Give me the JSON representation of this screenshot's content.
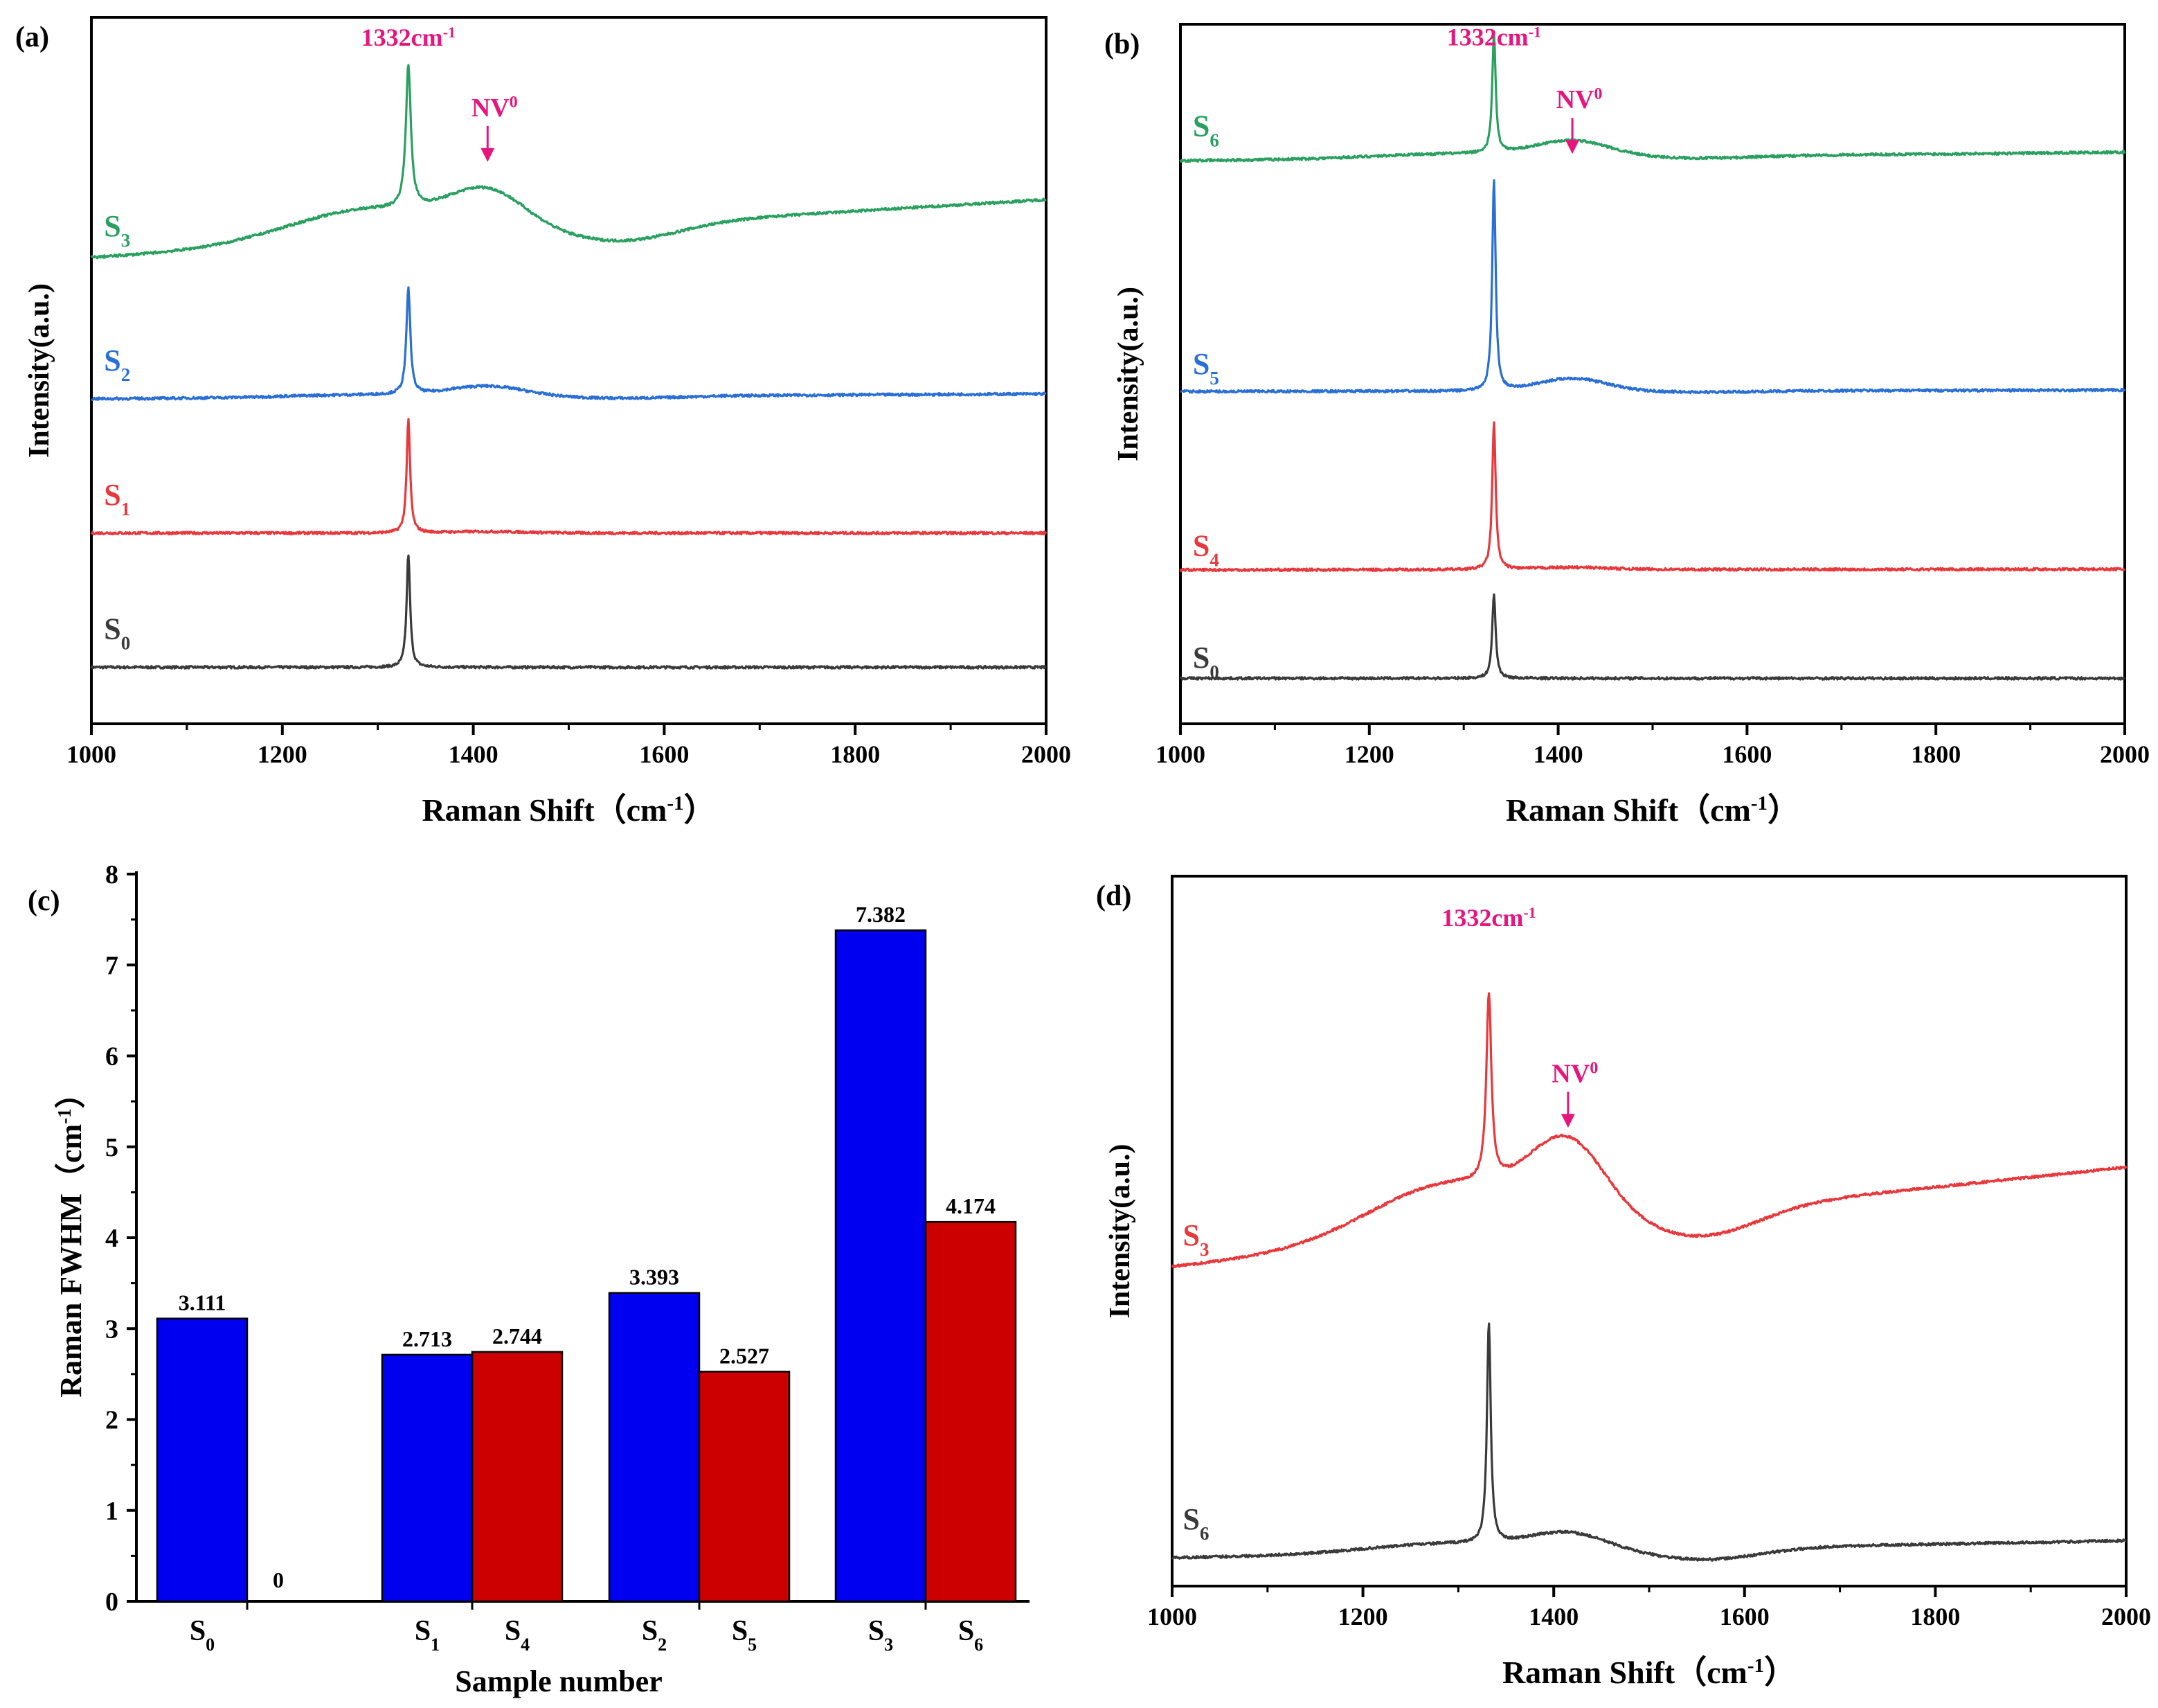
{
  "figure": {
    "colors": {
      "axis": "#000000",
      "s0": "#3a3a3a",
      "red": "#e8383c",
      "blue": "#2a6fd6",
      "green": "#2aa060",
      "annotation": "#e6167e",
      "bar_blue": "#0000f0",
      "bar_red": "#cc0000"
    },
    "annotations": {
      "peak_value": "1332",
      "peak_unit": "cm",
      "peak_sup": "-1",
      "nv_text": "NV",
      "nv_sup": "0"
    }
  },
  "chart_data": [
    {
      "id": "a",
      "panel_label": "(a)",
      "type": "line",
      "xlabel": "Raman Shift（cm",
      "xlabel_sup": "-1",
      "xlabel_end": "）",
      "ylabel": "Intensity(a.u.)",
      "xlim": [
        1000,
        2000
      ],
      "ylim": [
        0,
        100
      ],
      "xticks": [
        1000,
        1200,
        1400,
        1600,
        1800,
        2000
      ],
      "yticks": [],
      "series": [
        {
          "name": "S0",
          "label": "S",
          "sub": "0",
          "color": "#3a3a3a",
          "base": 8,
          "slope": 0,
          "curv": 0,
          "peak": 16,
          "peakw": 2.2,
          "nv": 0,
          "nvw": 60,
          "hump": 0,
          "label_x": 1027,
          "label_y": 12
        },
        {
          "name": "S1",
          "label": "S",
          "sub": "1",
          "color": "#e8383c",
          "base": 27,
          "slope": 0,
          "curv": 0,
          "peak": 16,
          "peakw": 2.2,
          "nv": 0.2,
          "nvw": 60,
          "hump": 0,
          "label_x": 1027,
          "label_y": 31
        },
        {
          "name": "S2",
          "label": "S",
          "sub": "2",
          "color": "#2a6fd6",
          "base": 46,
          "slope": 0.7,
          "curv": 0.7,
          "peak": 15,
          "peakw": 2.5,
          "nv": 1.4,
          "nvw": 55,
          "hump": 0.3,
          "label_x": 1027,
          "label_y": 50
        },
        {
          "name": "S3",
          "label": "S",
          "sub": "3",
          "color": "#2aa060",
          "base": 66,
          "slope": 8.2,
          "curv": 8.2,
          "peak": 20,
          "peakw": 3.2,
          "nv": 5,
          "nvw": 55,
          "hump": 2.2,
          "label_x": 1027,
          "label_y": 69
        }
      ],
      "peak_annotation_x": 1332,
      "peak_annotation_y": 96,
      "nv_annotation_x": 1415,
      "nv_annotation_y": 86
    },
    {
      "id": "b",
      "panel_label": "(b)",
      "type": "line",
      "xlabel": "Raman Shift（cm",
      "xlabel_sup": "-1",
      "xlabel_end": "）",
      "ylabel": "Intensity(a.u.)",
      "xlim": [
        1000,
        2000
      ],
      "ylim": [
        0,
        100
      ],
      "xticks": [
        1000,
        1200,
        1400,
        1600,
        1800,
        2000
      ],
      "yticks": [],
      "series": [
        {
          "name": "S0",
          "label": "S",
          "sub": "0",
          "color": "#3a3a3a",
          "base": 6.5,
          "slope": 0,
          "curv": 0,
          "peak": 12,
          "peakw": 2.2,
          "nv": 0,
          "nvw": 60,
          "hump": 0,
          "label_x": 1027,
          "label_y": 8
        },
        {
          "name": "S4",
          "label": "S",
          "sub": "4",
          "color": "#e8383c",
          "base": 22,
          "slope": 0.1,
          "curv": 0,
          "peak": 21,
          "peakw": 2.2,
          "nv": 0.3,
          "nvw": 60,
          "hump": 0,
          "label_x": 1027,
          "label_y": 24
        },
        {
          "name": "S5",
          "label": "S",
          "sub": "5",
          "color": "#2a6fd6",
          "base": 47.5,
          "slope": 0.2,
          "curv": 0,
          "peak": 30,
          "peakw": 2.2,
          "nv": 1.8,
          "nvw": 50,
          "hump": 0.2,
          "label_x": 1027,
          "label_y": 50
        },
        {
          "name": "S6",
          "label": "S",
          "sub": "6",
          "color": "#2aa060",
          "base": 80.5,
          "slope": 1.2,
          "curv": 1.2,
          "peak": 17,
          "peakw": 2.2,
          "nv": 2.2,
          "nvw": 55,
          "hump": 0.3,
          "label_x": 1027,
          "label_y": 84
        }
      ],
      "peak_annotation_x": 1332,
      "peak_annotation_y": 97,
      "nv_annotation_x": 1415,
      "nv_annotation_y": 88
    },
    {
      "id": "c",
      "panel_label": "(c)",
      "type": "bar",
      "xlabel": "Sample number",
      "ylabel": "Raman FWHM（cm",
      "ylabel_sup": "-1",
      "ylabel_end": "）",
      "ylim": [
        0,
        8
      ],
      "yticks": [
        0,
        1,
        2,
        3,
        4,
        5,
        6,
        7,
        8
      ],
      "groups": [
        {
          "blue_label": "S",
          "blue_sub": "0",
          "red_label": "",
          "red_sub": ""
        },
        {
          "blue_label": "S",
          "blue_sub": "1",
          "red_label": "S",
          "red_sub": "4"
        },
        {
          "blue_label": "S",
          "blue_sub": "2",
          "red_label": "S",
          "red_sub": "5"
        },
        {
          "blue_label": "S",
          "blue_sub": "3",
          "red_label": "S",
          "red_sub": "6"
        }
      ],
      "series": [
        {
          "name": "blue",
          "color": "#0000f0",
          "values": [
            3.111,
            2.713,
            3.393,
            7.382
          ],
          "value_labels": [
            "3.111",
            "2.713",
            "3.393",
            "7.382"
          ]
        },
        {
          "name": "red",
          "color": "#cc0000",
          "values": [
            0,
            2.744,
            2.527,
            4.174
          ],
          "value_labels": [
            "0",
            "2.744",
            "2.527",
            "4.174"
          ]
        }
      ]
    },
    {
      "id": "d",
      "panel_label": "(d)",
      "type": "line",
      "xlabel": "Raman Shift（cm",
      "xlabel_sup": "-1",
      "xlabel_end": "）",
      "ylabel": "Intensity(a.u.)",
      "xlim": [
        1000,
        2000
      ],
      "ylim": [
        0,
        100
      ],
      "xticks": [
        1000,
        1200,
        1400,
        1600,
        1800,
        2000
      ],
      "yticks": [],
      "series": [
        {
          "name": "S6",
          "label": "S",
          "sub": "6",
          "color": "#3a3a3a",
          "base": 4,
          "slope": 2.4,
          "curv": 2.4,
          "peak": 31,
          "peakw": 2.4,
          "nv": 2.2,
          "nvw": 55,
          "hump": 1.6,
          "label_x": 1025,
          "label_y": 8
        },
        {
          "name": "S3",
          "label": "S",
          "sub": "3",
          "color": "#e8383c",
          "base": 45,
          "slope": 14,
          "curv": 14,
          "peak": 26,
          "peakw": 3.2,
          "nv": 10,
          "nvw": 55,
          "hump": 3.5,
          "label_x": 1025,
          "label_y": 48
        }
      ],
      "peak_annotation_x": 1332,
      "peak_annotation_y": 93,
      "nv_annotation_x": 1415,
      "nv_annotation_y": 71
    }
  ]
}
